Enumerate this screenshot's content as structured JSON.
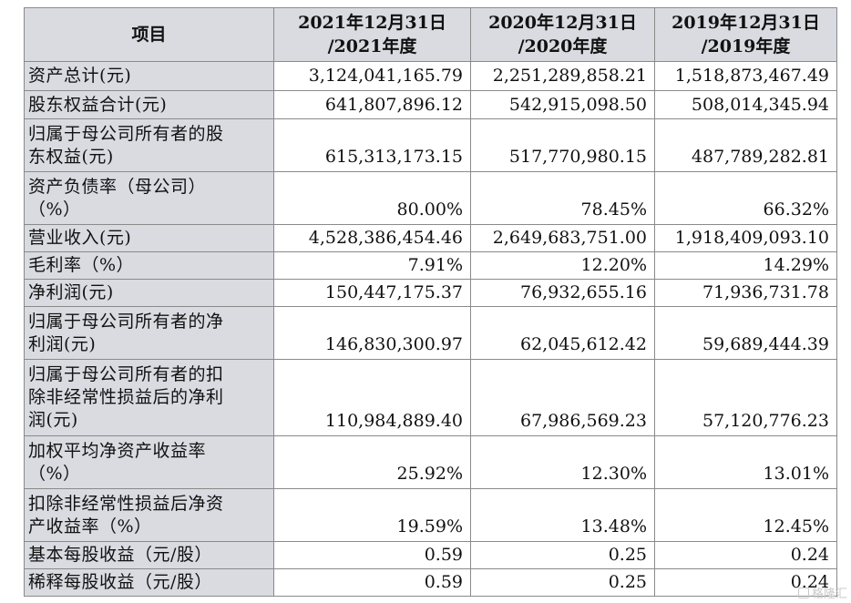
{
  "table": {
    "headers": [
      "项目",
      "2021年12月31日\n/2021年度",
      "2020年12月31日\n/2020年度",
      "2019年12月31日\n/2019年度"
    ],
    "header_lines": [
      [
        "项目"
      ],
      [
        "2021年12月31日",
        "/2021年度"
      ],
      [
        "2020年12月31日",
        "/2020年度"
      ],
      [
        "2019年12月31日",
        "/2019年度"
      ]
    ],
    "rows": [
      {
        "label": [
          "资产总计(元)"
        ],
        "values": [
          "3,124,041,165.79",
          "2,251,289,858.21",
          "1,518,873,467.49"
        ]
      },
      {
        "label": [
          "股东权益合计(元)"
        ],
        "values": [
          "641,807,896.12",
          "542,915,098.50",
          "508,014,345.94"
        ]
      },
      {
        "label": [
          "归属于母公司所有者的股",
          "东权益(元)"
        ],
        "values": [
          "615,313,173.15",
          "517,770,980.15",
          "487,789,282.81"
        ]
      },
      {
        "label": [
          "资产负债率（母公司）",
          "（%）"
        ],
        "values": [
          "80.00%",
          "78.45%",
          "66.32%"
        ]
      },
      {
        "label": [
          "营业收入(元)"
        ],
        "values": [
          "4,528,386,454.46",
          "2,649,683,751.00",
          "1,918,409,093.10"
        ]
      },
      {
        "label": [
          "毛利率（%）"
        ],
        "values": [
          "7.91%",
          "12.20%",
          "14.29%"
        ]
      },
      {
        "label": [
          "净利润(元)"
        ],
        "values": [
          "150,447,175.37",
          "76,932,655.16",
          "71,936,731.78"
        ]
      },
      {
        "label": [
          "归属于母公司所有者的净",
          "利润(元)"
        ],
        "values": [
          "146,830,300.97",
          "62,045,612.42",
          "59,689,444.39"
        ]
      },
      {
        "label": [
          "归属于母公司所有者的扣",
          "除非经常性损益后的净利",
          "润(元)"
        ],
        "values": [
          "110,984,889.40",
          "67,986,569.23",
          "57,120,776.23"
        ]
      },
      {
        "label": [
          "加权平均净资产收益率",
          "（%）"
        ],
        "values": [
          "25.92%",
          "12.30%",
          "13.01%"
        ]
      },
      {
        "label": [
          "扣除非经常性损益后净资",
          "产收益率（%）"
        ],
        "values": [
          "19.59%",
          "13.48%",
          "12.45%"
        ]
      },
      {
        "label": [
          "基本每股收益（元/股）"
        ],
        "values": [
          "0.59",
          "0.25",
          "0.24"
        ]
      },
      {
        "label": [
          "稀释每股收益（元/股）"
        ],
        "values": [
          "0.59",
          "0.25",
          "0.24"
        ]
      }
    ]
  },
  "watermark": {
    "text": "格隆汇",
    "icon": "logo-mark-icon"
  }
}
